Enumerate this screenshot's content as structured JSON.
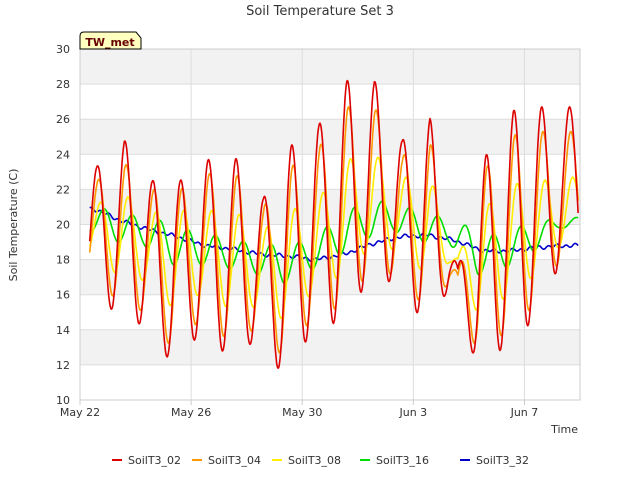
{
  "chart_data": {
    "type": "line",
    "title": "Soil Temperature Set 3",
    "site_label": "TW_met",
    "xlabel": "Time",
    "ylabel": "Soil Temperature (C)",
    "xlim": [
      "2022-05-22",
      "2022-06-09"
    ],
    "ylim": [
      10,
      30
    ],
    "x_ticks": [
      "May 22",
      "May 26",
      "May 30",
      "Jun 3",
      "Jun 7"
    ],
    "y_ticks": [
      10,
      12,
      14,
      16,
      18,
      20,
      22,
      24,
      26,
      28,
      30
    ],
    "grid": true,
    "legend_position": "bottom",
    "x": [
      "2022-05-22",
      "2022-05-23",
      "2022-05-24",
      "2022-05-25",
      "2022-05-26",
      "2022-05-27",
      "2022-05-28",
      "2022-05-29",
      "2022-05-30",
      "2022-05-31",
      "2022-06-01",
      "2022-06-02",
      "2022-06-03",
      "2022-06-04",
      "2022-06-05",
      "2022-06-06",
      "2022-06-07",
      "2022-06-08"
    ],
    "series": [
      {
        "name": "SoilT3_02",
        "color": "#dd0000",
        "min": [
          16.0,
          15.0,
          14.2,
          12.1,
          13.7,
          12.6,
          13.3,
          11.5,
          13.7,
          14.5,
          16.5,
          16.8,
          14.6,
          16.2,
          12.0,
          13.0,
          14.5,
          17.8
        ],
        "max": [
          23.3,
          24.8,
          22.5,
          22.5,
          23.7,
          23.8,
          21.5,
          24.5,
          25.7,
          28.2,
          28.2,
          24.8,
          26.1,
          17.5,
          23.9,
          26.5,
          26.7,
          26.7
        ]
      },
      {
        "name": "SoilT3_04",
        "color": "#ff9900",
        "min": [
          16.8,
          15.8,
          15.0,
          13.0,
          14.5,
          13.5,
          14.0,
          12.5,
          14.5,
          15.3,
          17.0,
          17.2,
          15.5,
          16.6,
          12.8,
          13.8,
          15.3,
          18.0
        ],
        "max": [
          22.5,
          23.5,
          22.0,
          22.0,
          22.9,
          22.9,
          21.0,
          23.3,
          24.4,
          26.7,
          26.7,
          23.9,
          24.9,
          17.2,
          23.2,
          25.1,
          25.3,
          25.3
        ]
      },
      {
        "name": "SoilT3_08",
        "color": "#ffee00",
        "min": [
          18.5,
          17.2,
          16.8,
          15.3,
          16.0,
          15.3,
          15.3,
          14.6,
          16.0,
          17.0,
          18.4,
          18.6,
          17.4,
          17.8,
          15.0,
          15.8,
          17.0,
          18.8
        ],
        "max": [
          21.2,
          21.7,
          20.7,
          20.8,
          20.8,
          20.7,
          19.7,
          20.8,
          21.5,
          23.7,
          24.0,
          22.7,
          22.7,
          18.3,
          21.0,
          22.3,
          22.5,
          22.7
        ]
      },
      {
        "name": "SoilT3_16",
        "color": "#00dd00",
        "min": [
          19.7,
          19.0,
          18.8,
          17.7,
          17.7,
          17.5,
          17.2,
          16.6,
          17.4,
          18.2,
          19.2,
          19.6,
          19.0,
          18.9,
          17.1,
          17.5,
          18.4,
          19.8
        ],
        "max": [
          21.0,
          20.6,
          20.4,
          19.8,
          19.5,
          19.1,
          18.9,
          18.8,
          19.5,
          20.8,
          21.4,
          21.1,
          20.6,
          20.2,
          19.3,
          19.8,
          20.2,
          20.4
        ]
      },
      {
        "name": "SoilT3_32",
        "color": "#0000cc",
        "values": [
          20.9,
          20.2,
          19.7,
          19.3,
          18.8,
          18.6,
          18.3,
          18.2,
          18.0,
          18.3,
          18.9,
          19.3,
          19.4,
          19.1,
          18.5,
          18.5,
          18.7,
          18.8
        ]
      }
    ]
  }
}
